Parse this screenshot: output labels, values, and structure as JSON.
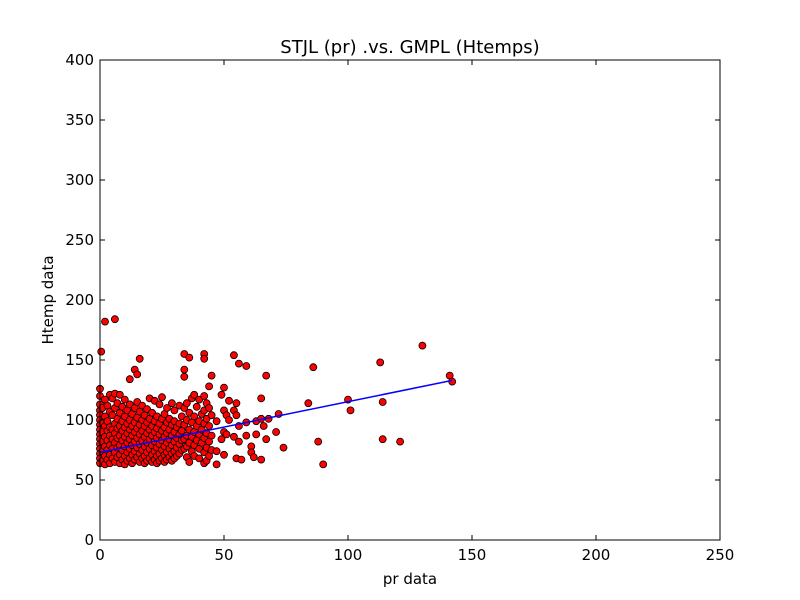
{
  "chart_data": {
    "type": "scatter",
    "title": "STJL (pr) .vs. GMPL (Htemps)",
    "xlabel": "pr data",
    "ylabel": "Htemp data",
    "xlim": [
      0,
      250
    ],
    "ylim": [
      0,
      400
    ],
    "xticks": [
      "0",
      "50",
      "100",
      "150",
      "200",
      "250"
    ],
    "yticks": [
      "0",
      "50",
      "100",
      "150",
      "200",
      "250",
      "300",
      "350",
      "400"
    ],
    "grid": false,
    "colors": {
      "points": "#ff0000",
      "point_edge": "#000000",
      "trend": "#0000ff"
    },
    "trendline": {
      "x": [
        0,
        142
      ],
      "y": [
        73,
        133
      ]
    },
    "series": [
      {
        "points": [
          [
            0,
            126
          ],
          [
            0,
            120
          ],
          [
            0,
            113
          ],
          [
            0,
            108
          ],
          [
            0,
            104
          ],
          [
            0,
            100
          ],
          [
            0,
            96
          ],
          [
            0,
            92
          ],
          [
            0,
            88
          ],
          [
            0,
            84
          ],
          [
            0,
            80
          ],
          [
            0,
            76
          ],
          [
            0,
            72
          ],
          [
            0,
            68
          ],
          [
            0,
            64
          ],
          [
            0.5,
            157
          ],
          [
            1,
            110
          ],
          [
            1,
            98
          ],
          [
            1,
            90
          ],
          [
            1,
            82
          ],
          [
            1,
            74
          ],
          [
            1,
            66
          ],
          [
            2,
            182
          ],
          [
            2,
            117
          ],
          [
            2,
            103
          ],
          [
            2,
            95
          ],
          [
            2,
            86
          ],
          [
            2,
            78
          ],
          [
            2,
            70
          ],
          [
            2,
            63
          ],
          [
            3,
            112
          ],
          [
            3,
            99
          ],
          [
            3,
            91
          ],
          [
            3,
            83
          ],
          [
            3,
            75
          ],
          [
            3,
            67
          ],
          [
            4,
            121
          ],
          [
            4,
            107
          ],
          [
            4,
            94
          ],
          [
            4,
            87
          ],
          [
            4,
            79
          ],
          [
            4,
            71
          ],
          [
            4,
            64
          ],
          [
            5,
            118
          ],
          [
            5,
            104
          ],
          [
            5,
            92
          ],
          [
            5,
            84
          ],
          [
            5,
            76
          ],
          [
            5,
            68
          ],
          [
            6,
            184
          ],
          [
            6,
            122
          ],
          [
            6,
            110
          ],
          [
            6,
            97
          ],
          [
            6,
            89
          ],
          [
            6,
            81
          ],
          [
            6,
            73
          ],
          [
            6,
            65
          ],
          [
            7,
            114
          ],
          [
            7,
            101
          ],
          [
            7,
            93
          ],
          [
            7,
            85
          ],
          [
            7,
            77
          ],
          [
            7,
            69
          ],
          [
            8,
            121
          ],
          [
            8,
            106
          ],
          [
            8,
            95
          ],
          [
            8,
            87
          ],
          [
            8,
            79
          ],
          [
            8,
            71
          ],
          [
            8,
            64
          ],
          [
            9,
            111
          ],
          [
            9,
            99
          ],
          [
            9,
            91
          ],
          [
            9,
            83
          ],
          [
            9,
            75
          ],
          [
            9,
            67
          ],
          [
            10,
            117
          ],
          [
            10,
            103
          ],
          [
            10,
            94
          ],
          [
            10,
            86
          ],
          [
            10,
            78
          ],
          [
            10,
            70
          ],
          [
            10,
            63
          ],
          [
            11,
            108
          ],
          [
            11,
            97
          ],
          [
            11,
            89
          ],
          [
            11,
            81
          ],
          [
            11,
            73
          ],
          [
            11,
            66
          ],
          [
            12,
            134
          ],
          [
            12,
            113
          ],
          [
            12,
            100
          ],
          [
            12,
            92
          ],
          [
            12,
            84
          ],
          [
            12,
            76
          ],
          [
            12,
            68
          ],
          [
            13,
            105
          ],
          [
            13,
            95
          ],
          [
            13,
            87
          ],
          [
            13,
            79
          ],
          [
            13,
            71
          ],
          [
            13,
            64
          ],
          [
            14,
            142
          ],
          [
            14,
            110
          ],
          [
            14,
            98
          ],
          [
            14,
            90
          ],
          [
            14,
            82
          ],
          [
            14,
            74
          ],
          [
            14,
            67
          ],
          [
            15,
            138
          ],
          [
            15,
            115
          ],
          [
            15,
            102
          ],
          [
            15,
            93
          ],
          [
            15,
            85
          ],
          [
            15,
            77
          ],
          [
            15,
            69
          ],
          [
            16,
            151
          ],
          [
            16,
            107
          ],
          [
            16,
            96
          ],
          [
            16,
            88
          ],
          [
            16,
            80
          ],
          [
            16,
            72
          ],
          [
            16,
            65
          ],
          [
            17,
            112
          ],
          [
            17,
            100
          ],
          [
            17,
            91
          ],
          [
            17,
            83
          ],
          [
            17,
            75
          ],
          [
            17,
            68
          ],
          [
            18,
            104
          ],
          [
            18,
            95
          ],
          [
            18,
            86
          ],
          [
            18,
            78
          ],
          [
            18,
            70
          ],
          [
            18,
            64
          ],
          [
            19,
            109
          ],
          [
            19,
            98
          ],
          [
            19,
            89
          ],
          [
            19,
            81
          ],
          [
            19,
            73
          ],
          [
            19,
            66
          ],
          [
            20,
            118
          ],
          [
            20,
            101
          ],
          [
            20,
            92
          ],
          [
            20,
            84
          ],
          [
            20,
            76
          ],
          [
            20,
            68
          ],
          [
            21,
            106
          ],
          [
            21,
            95
          ],
          [
            21,
            87
          ],
          [
            21,
            79
          ],
          [
            21,
            71
          ],
          [
            21,
            65
          ],
          [
            22,
            116
          ],
          [
            22,
            99
          ],
          [
            22,
            90
          ],
          [
            22,
            82
          ],
          [
            22,
            74
          ],
          [
            22,
            67
          ],
          [
            23,
            103
          ],
          [
            23,
            93
          ],
          [
            23,
            85
          ],
          [
            23,
            77
          ],
          [
            23,
            70
          ],
          [
            23,
            64
          ],
          [
            24,
            113
          ],
          [
            24,
            97
          ],
          [
            24,
            88
          ],
          [
            24,
            80
          ],
          [
            24,
            72
          ],
          [
            24,
            66
          ],
          [
            25,
            119
          ],
          [
            25,
            101
          ],
          [
            25,
            91
          ],
          [
            25,
            83
          ],
          [
            25,
            75
          ],
          [
            25,
            68
          ],
          [
            26,
            105
          ],
          [
            26,
            94
          ],
          [
            26,
            86
          ],
          [
            26,
            78
          ],
          [
            26,
            71
          ],
          [
            26,
            65
          ],
          [
            27,
            110
          ],
          [
            27,
            98
          ],
          [
            27,
            89
          ],
          [
            27,
            81
          ],
          [
            27,
            73
          ],
          [
            27,
            67
          ],
          [
            28,
            101
          ],
          [
            28,
            92
          ],
          [
            28,
            84
          ],
          [
            28,
            76
          ],
          [
            28,
            69
          ],
          [
            29,
            114
          ],
          [
            29,
            96
          ],
          [
            29,
            87
          ],
          [
            29,
            79
          ],
          [
            29,
            72
          ],
          [
            29,
            66
          ],
          [
            30,
            108
          ],
          [
            30,
            99
          ],
          [
            30,
            90
          ],
          [
            30,
            82
          ],
          [
            30,
            74
          ],
          [
            30,
            68
          ],
          [
            31,
            94
          ],
          [
            31,
            85
          ],
          [
            31,
            77
          ],
          [
            31,
            70
          ],
          [
            32,
            112
          ],
          [
            32,
            97
          ],
          [
            32,
            88
          ],
          [
            32,
            80
          ],
          [
            32,
            72
          ],
          [
            33,
            103
          ],
          [
            33,
            91
          ],
          [
            33,
            83
          ],
          [
            33,
            75
          ],
          [
            34,
            155
          ],
          [
            34,
            142
          ],
          [
            34,
            136
          ],
          [
            34,
            110
          ],
          [
            34,
            96
          ],
          [
            34,
            84
          ],
          [
            34,
            76
          ],
          [
            35,
            114
          ],
          [
            35,
            100
          ],
          [
            35,
            87
          ],
          [
            35,
            78
          ],
          [
            35,
            69
          ],
          [
            36,
            152
          ],
          [
            36,
            106
          ],
          [
            36,
            92
          ],
          [
            36,
            81
          ],
          [
            36,
            65
          ],
          [
            37,
            118
          ],
          [
            37,
            98
          ],
          [
            37,
            86
          ],
          [
            37,
            74
          ],
          [
            38,
            121
          ],
          [
            38,
            103
          ],
          [
            38,
            90
          ],
          [
            38,
            79
          ],
          [
            38,
            70
          ],
          [
            39,
            111
          ],
          [
            39,
            95
          ],
          [
            39,
            83
          ],
          [
            40,
            117
          ],
          [
            40,
            99
          ],
          [
            40,
            88
          ],
          [
            40,
            76
          ],
          [
            40,
            68
          ],
          [
            41,
            105
          ],
          [
            41,
            92
          ],
          [
            41,
            81
          ],
          [
            42,
            155
          ],
          [
            42,
            151
          ],
          [
            42,
            120
          ],
          [
            42,
            108
          ],
          [
            42,
            97
          ],
          [
            42,
            85
          ],
          [
            42,
            73
          ],
          [
            42,
            64
          ],
          [
            43,
            114
          ],
          [
            43,
            101
          ],
          [
            43,
            89
          ],
          [
            43,
            77
          ],
          [
            43,
            66
          ],
          [
            44,
            128
          ],
          [
            44,
            110
          ],
          [
            44,
            95
          ],
          [
            44,
            82
          ],
          [
            44,
            70
          ],
          [
            45,
            137
          ],
          [
            45,
            104
          ],
          [
            45,
            87
          ],
          [
            45,
            75
          ],
          [
            47,
            99
          ],
          [
            47,
            74
          ],
          [
            47,
            63
          ],
          [
            49,
            121
          ],
          [
            49,
            84
          ],
          [
            50,
            127
          ],
          [
            50,
            108
          ],
          [
            50,
            90
          ],
          [
            50,
            71
          ],
          [
            51,
            104
          ],
          [
            51,
            88
          ],
          [
            52,
            116
          ],
          [
            52,
            100
          ],
          [
            54,
            154
          ],
          [
            54,
            108
          ],
          [
            54,
            86
          ],
          [
            55,
            114
          ],
          [
            55,
            104
          ],
          [
            55,
            68
          ],
          [
            56,
            147
          ],
          [
            56,
            95
          ],
          [
            56,
            82
          ],
          [
            57,
            67
          ],
          [
            59,
            145
          ],
          [
            59,
            98
          ],
          [
            59,
            87
          ],
          [
            61,
            78
          ],
          [
            61,
            73
          ],
          [
            62,
            69
          ],
          [
            63,
            99
          ],
          [
            63,
            88
          ],
          [
            65,
            118
          ],
          [
            65,
            101
          ],
          [
            65,
            67
          ],
          [
            66,
            95
          ],
          [
            67,
            137
          ],
          [
            67,
            84
          ],
          [
            68,
            101
          ],
          [
            71,
            90
          ],
          [
            72,
            105
          ],
          [
            74,
            77
          ],
          [
            84,
            114
          ],
          [
            86,
            144
          ],
          [
            88,
            82
          ],
          [
            90,
            63
          ],
          [
            100,
            117
          ],
          [
            101,
            108
          ],
          [
            113,
            148
          ],
          [
            114,
            115
          ],
          [
            114,
            84
          ],
          [
            121,
            82
          ],
          [
            130,
            162
          ],
          [
            141,
            137
          ],
          [
            142,
            132
          ]
        ]
      }
    ]
  }
}
